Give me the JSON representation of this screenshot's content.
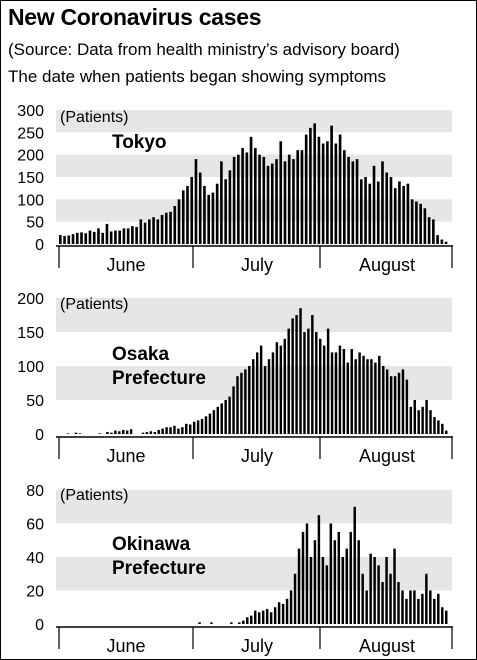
{
  "header": {
    "title": "New Coronavirus cases",
    "source": "(Source: Data from health ministry’s advisory board)",
    "subtitle": "The date when patients began showing symptoms"
  },
  "colors": {
    "band": "#e6e6e6",
    "bar": "#000000",
    "axis": "#000000",
    "text": "#000000"
  },
  "chart_data": [
    {
      "type": "bar",
      "label": "Tokyo",
      "unit_label": "(Patients)",
      "ylim": [
        0,
        300
      ],
      "yticks": [
        0,
        50,
        100,
        150,
        200,
        250,
        300
      ],
      "months": [
        "June",
        "July",
        "August"
      ],
      "start_date": "2020-06-01",
      "values": [
        20,
        18,
        19,
        22,
        25,
        26,
        24,
        30,
        27,
        35,
        25,
        45,
        28,
        30,
        30,
        35,
        35,
        40,
        38,
        55,
        48,
        55,
        60,
        55,
        65,
        70,
        72,
        85,
        100,
        120,
        130,
        150,
        190,
        160,
        130,
        110,
        115,
        135,
        185,
        145,
        165,
        195,
        200,
        215,
        205,
        240,
        215,
        200,
        195,
        175,
        180,
        190,
        230,
        185,
        200,
        190,
        210,
        210,
        245,
        260,
        270,
        240,
        225,
        230,
        265,
        225,
        245,
        210,
        195,
        185,
        190,
        145,
        150,
        135,
        175,
        140,
        185,
        160,
        150,
        125,
        140,
        130,
        135,
        100,
        95,
        90,
        80,
        60,
        55,
        20,
        10,
        5
      ]
    },
    {
      "type": "bar",
      "label": "Osaka\nPrefecture",
      "unit_label": "(Patients)",
      "ylim": [
        0,
        200
      ],
      "yticks": [
        0,
        50,
        100,
        150,
        200
      ],
      "months": [
        "June",
        "July",
        "August"
      ],
      "start_date": "2020-06-01",
      "values": [
        0,
        0,
        1,
        0,
        2,
        1,
        0,
        0,
        0,
        0,
        1,
        0,
        3,
        2,
        5,
        4,
        6,
        5,
        7,
        0,
        0,
        2,
        3,
        4,
        3,
        6,
        8,
        10,
        10,
        12,
        8,
        10,
        15,
        14,
        18,
        20,
        22,
        26,
        30,
        35,
        40,
        45,
        50,
        55,
        70,
        85,
        90,
        95,
        100,
        110,
        120,
        130,
        100,
        110,
        120,
        135,
        130,
        140,
        155,
        170,
        175,
        185,
        150,
        155,
        175,
        150,
        140,
        130,
        155,
        120,
        120,
        130,
        125,
        105,
        125,
        110,
        120,
        115,
        110,
        110,
        105,
        115,
        100,
        95,
        85,
        85,
        90,
        95,
        80,
        40,
        50,
        35,
        40,
        50,
        35,
        25,
        20,
        15,
        5
      ]
    },
    {
      "type": "bar",
      "label": "Okinawa\nPrefecture",
      "unit_label": "(Patients)",
      "ylim": [
        0,
        80
      ],
      "yticks": [
        0,
        10,
        20,
        30,
        40,
        50,
        60,
        70,
        80
      ],
      "months": [
        "June",
        "July",
        "August"
      ],
      "start_date": "2020-06-01",
      "values": [
        0,
        0,
        0,
        0,
        0,
        0,
        0,
        0,
        0,
        0,
        0,
        0,
        0,
        0,
        0,
        0,
        0,
        0,
        0,
        0,
        0,
        0,
        0,
        0,
        0,
        0,
        0,
        0,
        0,
        0,
        0,
        0,
        0,
        0,
        0,
        1,
        0,
        0,
        1,
        0,
        0,
        0,
        0,
        1,
        0,
        1,
        2,
        4,
        5,
        8,
        7,
        8,
        9,
        7,
        10,
        13,
        12,
        15,
        20,
        30,
        45,
        55,
        60,
        40,
        50,
        65,
        40,
        35,
        60,
        50,
        55,
        40,
        45,
        55,
        70,
        50,
        30,
        20,
        42,
        40,
        35,
        25,
        40,
        30,
        45,
        25,
        20,
        15,
        20,
        20,
        15,
        18,
        30,
        20,
        15,
        18,
        10,
        8
      ]
    }
  ]
}
